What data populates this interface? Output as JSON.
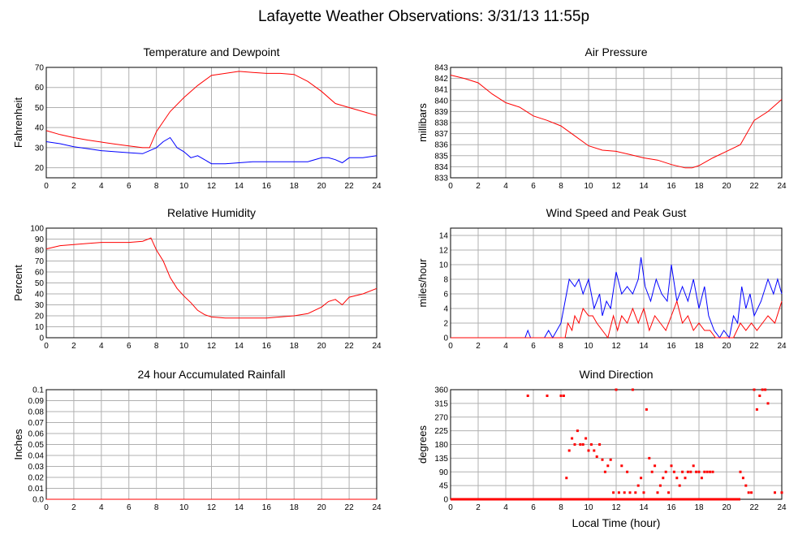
{
  "page": {
    "title": "Lafayette Weather Observations: 3/31/13 11:55p"
  },
  "colors": {
    "red": "#ff0000",
    "blue": "#0000ff",
    "grid": "#b0b0b0"
  },
  "chart_data": [
    {
      "id": "temperature",
      "type": "line",
      "title": "Temperature and Dewpoint",
      "xlabel": "",
      "ylabel": "Fahrenheit",
      "xlim": [
        0,
        24
      ],
      "ylim": [
        15,
        70
      ],
      "xticks": [
        0,
        2,
        4,
        6,
        8,
        10,
        12,
        14,
        16,
        18,
        20,
        22,
        24
      ],
      "yticks": [
        20,
        30,
        40,
        50,
        60,
        70
      ],
      "grid": true,
      "series": [
        {
          "color": "#ff0000",
          "x": [
            0,
            1,
            2,
            3,
            4,
            5,
            6,
            7,
            7.5,
            8,
            9,
            10,
            11,
            12,
            13,
            14,
            15,
            16,
            17,
            18,
            19,
            20,
            21,
            22,
            23,
            24
          ],
          "y": [
            38.5,
            36.5,
            35,
            33.8,
            32.8,
            31.8,
            30.9,
            30,
            30,
            38,
            48,
            55,
            61,
            66,
            67,
            68,
            67.5,
            67,
            67,
            66.5,
            63,
            58,
            52,
            50,
            48,
            46
          ]
        },
        {
          "color": "#0000ff",
          "x": [
            0,
            1,
            2,
            3,
            4,
            5,
            6,
            7,
            8,
            8.5,
            9,
            9.5,
            10,
            10.5,
            11,
            11.5,
            12,
            13,
            14,
            15,
            16,
            17,
            18,
            19,
            20,
            20.5,
            21,
            21.5,
            22,
            23,
            24
          ],
          "y": [
            33,
            32,
            30.5,
            29.5,
            28.5,
            28,
            27.5,
            27,
            30,
            33,
            35,
            30,
            28,
            25,
            26,
            24,
            22,
            22,
            22.5,
            23,
            23,
            23,
            23,
            23,
            25,
            25,
            24,
            22.5,
            25,
            25,
            26
          ]
        }
      ]
    },
    {
      "id": "pressure",
      "type": "line",
      "title": "Air Pressure",
      "xlabel": "",
      "ylabel": "millibars",
      "xlim": [
        0,
        24
      ],
      "ylim": [
        833,
        843
      ],
      "xticks": [
        0,
        2,
        4,
        6,
        8,
        10,
        12,
        14,
        16,
        18,
        20,
        22,
        24
      ],
      "yticks": [
        833,
        834,
        835,
        836,
        837,
        838,
        839,
        840,
        841,
        842,
        843
      ],
      "grid": true,
      "series": [
        {
          "color": "#ff0000",
          "x": [
            0,
            1,
            2,
            3,
            4,
            5,
            6,
            7,
            8,
            9,
            10,
            11,
            12,
            13,
            14,
            15,
            16,
            17,
            17.5,
            18,
            19,
            20,
            21,
            22,
            23,
            24
          ],
          "y": [
            842.3,
            842,
            841.6,
            840.6,
            839.8,
            839.4,
            838.6,
            838.2,
            837.7,
            836.8,
            835.9,
            835.5,
            835.4,
            835.1,
            834.8,
            834.6,
            834.2,
            833.9,
            833.9,
            834.1,
            834.8,
            835.4,
            836,
            838.2,
            839,
            840.1
          ]
        }
      ]
    },
    {
      "id": "humidity",
      "type": "line",
      "title": "Relative Humidity",
      "xlabel": "",
      "ylabel": "Percent",
      "xlim": [
        0,
        24
      ],
      "ylim": [
        0,
        100
      ],
      "xticks": [
        0,
        2,
        4,
        6,
        8,
        10,
        12,
        14,
        16,
        18,
        20,
        22,
        24
      ],
      "yticks": [
        0,
        10,
        20,
        30,
        40,
        50,
        60,
        70,
        80,
        90,
        100
      ],
      "grid": true,
      "series": [
        {
          "color": "#ff0000",
          "x": [
            0,
            1,
            2,
            3,
            4,
            5,
            6,
            7,
            7.6,
            8,
            8.5,
            9,
            9.5,
            10,
            10.5,
            11,
            11.5,
            12,
            13,
            14,
            15,
            16,
            17,
            18,
            19,
            20,
            20.5,
            21,
            21.5,
            22,
            23,
            24
          ],
          "y": [
            81,
            84,
            85,
            86,
            87,
            87,
            87,
            88,
            91,
            80,
            70,
            55,
            45,
            38,
            32,
            25,
            21,
            19,
            18,
            18,
            18,
            18,
            19,
            20,
            22,
            28,
            33,
            35,
            30,
            37,
            40,
            45
          ]
        }
      ]
    },
    {
      "id": "wind-speed",
      "type": "line",
      "title": "Wind Speed and Peak Gust",
      "xlabel": "",
      "ylabel": "miles/hour",
      "xlim": [
        0,
        24
      ],
      "ylim": [
        0,
        15
      ],
      "xticks": [
        0,
        2,
        4,
        6,
        8,
        10,
        12,
        14,
        16,
        18,
        20,
        22,
        24
      ],
      "yticks": [
        0,
        2,
        4,
        6,
        8,
        10,
        12,
        14
      ],
      "grid": true,
      "series": [
        {
          "color": "#0000ff",
          "x": [
            0,
            5.4,
            5.6,
            5.8,
            6.8,
            7.1,
            7.4,
            8.0,
            8.3,
            8.6,
            9.0,
            9.3,
            9.6,
            10.0,
            10.4,
            10.8,
            11.0,
            11.3,
            11.6,
            12.0,
            12.4,
            12.8,
            13.2,
            13.6,
            13.8,
            14.1,
            14.5,
            14.9,
            15.3,
            15.7,
            16.0,
            16.4,
            16.8,
            17.2,
            17.6,
            18.0,
            18.4,
            18.7,
            19.1,
            19.5,
            19.8,
            20.2,
            20.5,
            20.8,
            21.1,
            21.4,
            21.7,
            22.0,
            22.5,
            23.0,
            23.4,
            23.7,
            24.0
          ],
          "y": [
            0,
            0,
            1,
            0,
            0,
            1,
            0,
            2,
            5,
            8,
            7,
            8,
            6,
            8,
            4,
            6,
            3,
            5,
            4,
            9,
            6,
            7,
            6,
            8,
            11,
            7,
            5,
            8,
            6,
            5,
            10,
            5,
            7,
            5,
            8,
            4,
            7,
            3,
            1,
            0,
            1,
            0,
            3,
            2,
            7,
            4,
            6,
            3,
            5,
            8,
            6,
            8,
            6
          ]
        },
        {
          "color": "#ff0000",
          "x": [
            0,
            8.3,
            8.5,
            8.8,
            9.0,
            9.3,
            9.6,
            10.0,
            10.3,
            10.6,
            11.0,
            11.4,
            11.8,
            12.1,
            12.4,
            12.8,
            13.2,
            13.6,
            14.0,
            14.4,
            14.8,
            15.2,
            15.6,
            16.0,
            16.4,
            16.8,
            17.2,
            17.6,
            18.0,
            18.4,
            18.8,
            19.2,
            20.5,
            21.0,
            21.4,
            21.8,
            22.2,
            22.6,
            23.0,
            23.5,
            24.0
          ],
          "y": [
            0,
            0,
            2,
            1,
            3,
            2,
            4,
            3,
            3,
            2,
            1,
            0,
            3,
            1,
            3,
            2,
            4,
            2,
            4,
            1,
            3,
            2,
            1,
            3,
            5,
            2,
            3,
            1,
            2,
            1,
            1,
            0,
            0,
            2,
            1,
            2,
            1,
            2,
            3,
            2,
            5
          ]
        }
      ]
    },
    {
      "id": "rainfall",
      "type": "line",
      "title": "24 hour Accumulated Rainfall",
      "xlabel": "",
      "ylabel": "Inches",
      "xlim": [
        0,
        24
      ],
      "ylim": [
        0,
        0.1
      ],
      "xticks": [
        0,
        2,
        4,
        6,
        8,
        10,
        12,
        14,
        16,
        18,
        20,
        22,
        24
      ],
      "yticks": [
        0.0,
        0.01,
        0.02,
        0.03,
        0.04,
        0.05,
        0.06,
        0.07,
        0.08,
        0.09,
        0.1
      ],
      "ytick_labels": [
        "0.0",
        "0.01",
        "0.02",
        "0.03",
        "0.04",
        "0.05",
        "0.06",
        "0.07",
        "0.08",
        "0.09",
        "0.1"
      ],
      "grid": true,
      "series": [
        {
          "color": "#ff0000",
          "x": [
            0,
            24
          ],
          "y": [
            0,
            0
          ]
        }
      ]
    },
    {
      "id": "wind-direction",
      "type": "scatter",
      "title": "Wind Direction",
      "xlabel": "Local Time (hour)",
      "ylabel": "degrees",
      "xlim": [
        0,
        24
      ],
      "ylim": [
        0,
        360
      ],
      "xticks": [
        0,
        2,
        4,
        6,
        8,
        10,
        12,
        14,
        16,
        18,
        20,
        22,
        24
      ],
      "yticks": [
        0,
        45,
        90,
        135,
        180,
        225,
        270,
        315,
        360
      ],
      "grid": true,
      "series": [
        {
          "color": "#ff0000",
          "x": [
            5.6,
            7.0,
            8.0,
            8.2,
            8.4,
            8.6,
            8.8,
            9.0,
            9.2,
            9.4,
            9.6,
            9.8,
            10.0,
            10.2,
            10.4,
            10.6,
            10.8,
            11.0,
            11.2,
            11.4,
            11.6,
            11.8,
            12.0,
            12.2,
            12.4,
            12.6,
            12.8,
            13.0,
            13.2,
            13.4,
            13.6,
            13.8,
            14.0,
            14.2,
            14.4,
            14.6,
            14.8,
            15.0,
            15.2,
            15.4,
            15.6,
            15.8,
            16.0,
            16.2,
            16.4,
            16.6,
            16.8,
            17.0,
            17.2,
            17.4,
            17.6,
            17.8,
            18.0,
            18.2,
            18.4,
            18.6,
            18.8,
            19.0,
            19.3,
            19.6,
            20.0,
            20.4,
            20.8,
            21.0,
            21.2,
            21.4,
            21.6,
            21.8,
            22.0,
            22.2,
            22.4,
            22.6,
            22.8,
            23.0,
            23.5,
            24.0
          ],
          "y": [
            340,
            340,
            340,
            340,
            70,
            160,
            200,
            180,
            225,
            180,
            180,
            200,
            160,
            180,
            160,
            140,
            180,
            130,
            90,
            110,
            130,
            22,
            360,
            22,
            110,
            22,
            90,
            22,
            360,
            22,
            45,
            70,
            22,
            295,
            135,
            90,
            110,
            22,
            45,
            70,
            90,
            22,
            110,
            90,
            70,
            45,
            90,
            70,
            90,
            90,
            110,
            90,
            90,
            70,
            90,
            90,
            90,
            90,
            0,
            0,
            0,
            0,
            0,
            90,
            70,
            45,
            22,
            22,
            360,
            295,
            340,
            360,
            360,
            315,
            22,
            22
          ]
        },
        {
          "color": "#ff0000",
          "x": [
            0,
            1,
            2,
            3,
            4,
            5,
            6,
            7,
            8,
            19.4,
            20,
            20.5,
            21
          ],
          "y": [
            0,
            0,
            0,
            0,
            0,
            0,
            0,
            0,
            0,
            0,
            0,
            0,
            0
          ],
          "style": "line"
        }
      ]
    }
  ]
}
